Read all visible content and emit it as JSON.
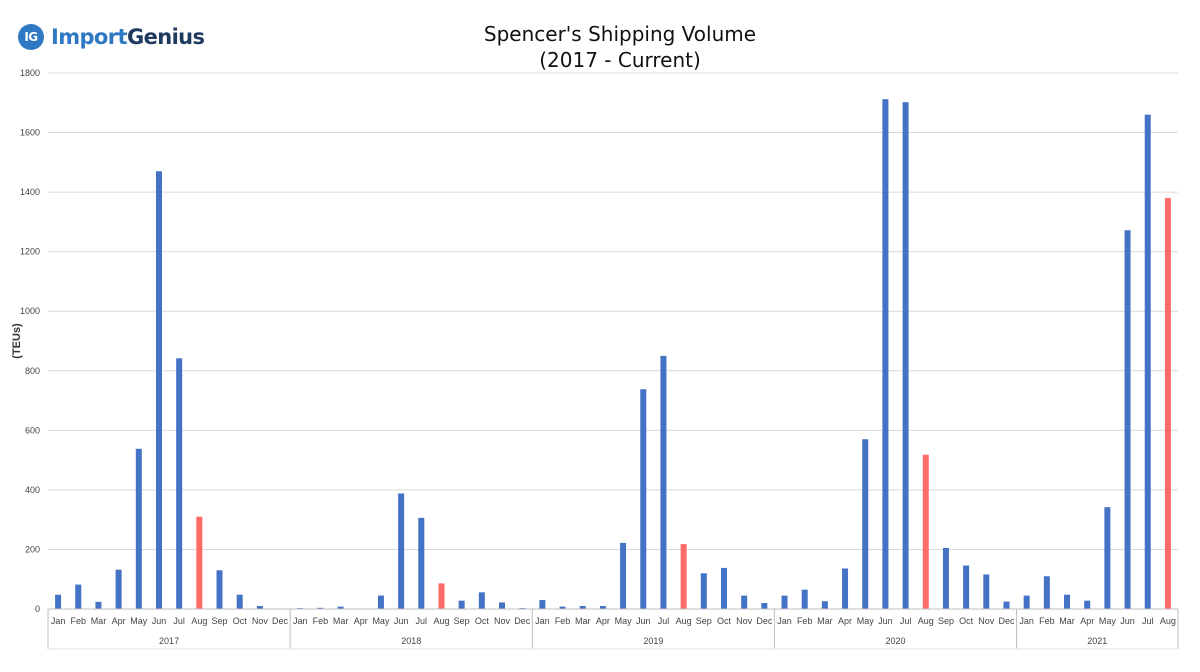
{
  "logo": {
    "badge": "IG",
    "word_a": "Import",
    "word_b": "Genius"
  },
  "chart_data": {
    "type": "bar",
    "title_line1": "Spencer's Shipping Volume",
    "title_line2": "(2017 - Current)",
    "ylabel": "(TEUs)",
    "xlabel": "",
    "ylim": [
      0,
      1800
    ],
    "yticks": [
      0,
      200,
      400,
      600,
      800,
      1000,
      1200,
      1400,
      1600,
      1800
    ],
    "grid": true,
    "colors": {
      "default": "#4472c4",
      "highlight": "#ff6b66"
    },
    "highlight_month": "Aug",
    "groups": [
      {
        "year": "2017",
        "months": [
          "Jan",
          "Feb",
          "Mar",
          "Apr",
          "May",
          "Jun",
          "Jul",
          "Aug",
          "Sep",
          "Oct",
          "Nov",
          "Dec"
        ],
        "values": [
          48,
          82,
          24,
          132,
          538,
          1470,
          842,
          310,
          130,
          48,
          10,
          0
        ]
      },
      {
        "year": "2018",
        "months": [
          "Jan",
          "Feb",
          "Mar",
          "Apr",
          "May",
          "Jun",
          "Jul",
          "Aug",
          "Sep",
          "Oct",
          "Nov",
          "Dec"
        ],
        "values": [
          3,
          4,
          8,
          0,
          45,
          388,
          306,
          86,
          28,
          56,
          22,
          3
        ]
      },
      {
        "year": "2019",
        "months": [
          "Jan",
          "Feb",
          "Mar",
          "Apr",
          "May",
          "Jun",
          "Jul",
          "Aug",
          "Sep",
          "Oct",
          "Nov",
          "Dec"
        ],
        "values": [
          30,
          8,
          10,
          10,
          222,
          738,
          850,
          218,
          120,
          138,
          45,
          20
        ]
      },
      {
        "year": "2020",
        "months": [
          "Jan",
          "Feb",
          "Mar",
          "Apr",
          "May",
          "Jun",
          "Jul",
          "Aug",
          "Sep",
          "Oct",
          "Nov",
          "Dec"
        ],
        "values": [
          45,
          65,
          26,
          136,
          570,
          1712,
          1702,
          518,
          205,
          146,
          116,
          25
        ]
      },
      {
        "year": "2021",
        "months": [
          "Jan",
          "Feb",
          "Mar",
          "Apr",
          "May",
          "Jun",
          "Jul",
          "Aug"
        ],
        "values": [
          45,
          110,
          48,
          28,
          342,
          1272,
          1660,
          1380
        ]
      }
    ]
  }
}
